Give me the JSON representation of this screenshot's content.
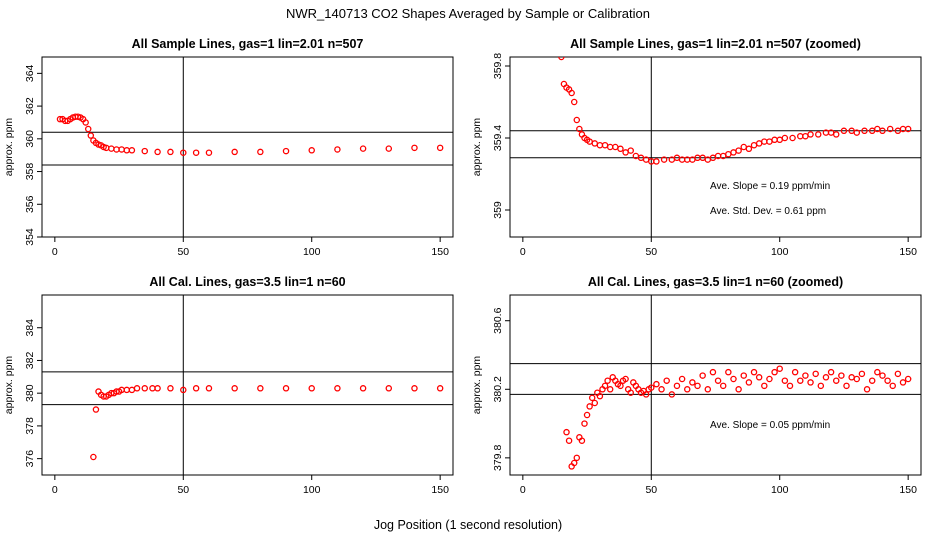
{
  "figure": {
    "title": "NWR_140713  CO2 Shapes Averaged by Sample or Calibration",
    "xlabel": "Jog Position (1 second resolution)"
  },
  "chart_data": [
    {
      "type": "scatter",
      "title": "All Sample Lines, gas=1 lin=2.01 n=507",
      "ylabel": "approx. ppm",
      "xlim": [
        -5,
        155
      ],
      "ylim": [
        354,
        365
      ],
      "xticks": [
        0,
        50,
        100,
        150
      ],
      "yticks": [
        354,
        356,
        358,
        360,
        362,
        364
      ],
      "vline": 50,
      "hlines": [
        358.4,
        360.4
      ],
      "color": "#ff0000",
      "annotations": [],
      "series": [
        {
          "x": [
            2,
            3,
            4,
            5,
            6,
            7,
            8,
            9,
            10,
            11,
            12,
            13,
            14,
            15,
            16,
            17,
            18,
            19,
            20,
            22,
            24,
            26,
            28,
            30,
            35,
            40,
            45,
            50,
            55,
            60,
            70,
            80,
            90,
            100,
            110,
            120,
            130,
            140,
            150
          ],
          "y": [
            361.2,
            361.2,
            361.1,
            361.1,
            361.2,
            361.3,
            361.35,
            361.35,
            361.3,
            361.2,
            361.0,
            360.6,
            360.2,
            359.9,
            359.75,
            359.65,
            359.6,
            359.5,
            359.45,
            359.4,
            359.35,
            359.35,
            359.3,
            359.3,
            359.25,
            359.2,
            359.2,
            359.15,
            359.15,
            359.15,
            359.2,
            359.2,
            359.25,
            359.3,
            359.35,
            359.4,
            359.4,
            359.45,
            359.45
          ]
        }
      ]
    },
    {
      "type": "scatter",
      "title": "All Sample Lines, gas=1 lin=2.01 n=507 (zoomed)",
      "ylabel": "approx. ppm",
      "xlim": [
        -5,
        155
      ],
      "ylim": [
        358.85,
        359.85
      ],
      "xticks": [
        0,
        50,
        100,
        150
      ],
      "yticks": [
        359.0,
        359.4,
        359.8
      ],
      "vline": 50,
      "hlines": [
        359.29,
        359.44
      ],
      "color": "#ff0000",
      "annotations": [
        "Ave. Slope =  0.19  ppm/min",
        "Ave. Std. Dev. =  0.61  ppm"
      ],
      "series": [
        {
          "x": [
            15,
            16,
            17,
            18,
            19,
            20,
            21,
            22,
            23,
            24,
            25,
            26,
            28,
            30,
            32,
            34,
            36,
            38,
            40,
            42,
            44,
            46,
            48,
            50,
            52,
            55,
            58,
            60,
            62,
            64,
            66,
            68,
            70,
            72,
            74,
            76,
            78,
            80,
            82,
            84,
            86,
            88,
            90,
            92,
            94,
            96,
            98,
            100,
            102,
            105,
            108,
            110,
            112,
            115,
            118,
            120,
            122,
            125,
            128,
            130,
            133,
            136,
            138,
            140,
            143,
            146,
            148,
            150
          ],
          "y": [
            359.85,
            359.7,
            359.68,
            359.67,
            359.65,
            359.6,
            359.5,
            359.45,
            359.42,
            359.4,
            359.39,
            359.38,
            359.37,
            359.36,
            359.36,
            359.35,
            359.35,
            359.34,
            359.32,
            359.33,
            359.3,
            359.29,
            359.28,
            359.27,
            359.27,
            359.28,
            359.28,
            359.29,
            359.28,
            359.28,
            359.28,
            359.29,
            359.29,
            359.28,
            359.29,
            359.3,
            359.3,
            359.31,
            359.32,
            359.33,
            359.35,
            359.34,
            359.36,
            359.37,
            359.38,
            359.38,
            359.39,
            359.39,
            359.4,
            359.4,
            359.41,
            359.41,
            359.42,
            359.42,
            359.43,
            359.43,
            359.42,
            359.44,
            359.44,
            359.43,
            359.44,
            359.44,
            359.45,
            359.44,
            359.45,
            359.44,
            359.45,
            359.45
          ]
        }
      ]
    },
    {
      "type": "scatter",
      "title": "All Cal. Lines, gas=3.5 lin=1 n=60",
      "ylabel": "approx. ppm",
      "xlim": [
        -5,
        155
      ],
      "ylim": [
        375,
        386
      ],
      "xticks": [
        0,
        50,
        100,
        150
      ],
      "yticks": [
        376,
        378,
        380,
        382,
        384
      ],
      "ytick_labels": [
        "376",
        "378",
        "380",
        "382",
        "384"
      ],
      "vline": 50,
      "hlines": [
        379.3,
        381.3
      ],
      "color": "#ff0000",
      "annotations": [],
      "series": [
        {
          "x": [
            15,
            16,
            17,
            18,
            19,
            20,
            21,
            22,
            23,
            24,
            25,
            26,
            28,
            30,
            32,
            35,
            38,
            40,
            45,
            50,
            55,
            60,
            70,
            80,
            90,
            100,
            110,
            120,
            130,
            140,
            150
          ],
          "y": [
            376.1,
            379.0,
            380.1,
            379.9,
            379.8,
            379.8,
            379.9,
            380.0,
            380.0,
            380.1,
            380.1,
            380.2,
            380.2,
            380.2,
            380.3,
            380.3,
            380.3,
            380.3,
            380.3,
            380.2,
            380.3,
            380.3,
            380.3,
            380.3,
            380.3,
            380.3,
            380.3,
            380.3,
            380.3,
            380.3,
            380.3
          ]
        }
      ]
    },
    {
      "type": "scatter",
      "title": "All Cal. Lines, gas=3.5 lin=1 n=60 (zoomed)",
      "ylabel": "approx. ppm",
      "xlim": [
        -5,
        155
      ],
      "ylim": [
        379.7,
        380.75
      ],
      "xticks": [
        0,
        50,
        100,
        150
      ],
      "yticks": [
        379.8,
        380.2,
        380.6
      ],
      "ytick_labels": [
        "379.8",
        "380.2",
        "380.6"
      ],
      "vline": 50,
      "hlines": [
        380.17,
        380.35
      ],
      "color": "#ff0000",
      "annotations": [
        "Ave. Slope =  0.05  ppm/min"
      ],
      "series": [
        {
          "x": [
            17,
            18,
            19,
            20,
            21,
            22,
            23,
            24,
            25,
            26,
            27,
            28,
            29,
            30,
            31,
            32,
            33,
            34,
            35,
            36,
            37,
            38,
            39,
            40,
            41,
            42,
            43,
            44,
            45,
            46,
            47,
            48,
            49,
            50,
            52,
            54,
            56,
            58,
            60,
            62,
            64,
            66,
            68,
            70,
            72,
            74,
            76,
            78,
            80,
            82,
            84,
            86,
            88,
            90,
            92,
            94,
            96,
            98,
            100,
            102,
            104,
            106,
            108,
            110,
            112,
            114,
            116,
            118,
            120,
            122,
            124,
            126,
            128,
            130,
            132,
            134,
            136,
            138,
            140,
            142,
            144,
            146,
            148,
            150
          ],
          "y": [
            379.95,
            379.9,
            379.75,
            379.77,
            379.8,
            379.92,
            379.9,
            380.0,
            380.05,
            380.1,
            380.15,
            380.12,
            380.18,
            380.16,
            380.2,
            380.22,
            380.25,
            380.2,
            380.27,
            380.25,
            380.23,
            380.22,
            380.25,
            380.26,
            380.2,
            380.18,
            380.24,
            380.22,
            380.2,
            380.18,
            380.19,
            380.17,
            380.2,
            380.21,
            380.23,
            380.2,
            380.25,
            380.17,
            380.22,
            380.26,
            380.2,
            380.24,
            380.22,
            380.28,
            380.2,
            380.3,
            380.25,
            380.22,
            380.3,
            380.26,
            380.2,
            380.28,
            380.24,
            380.3,
            380.27,
            380.22,
            380.26,
            380.3,
            380.32,
            380.25,
            380.22,
            380.3,
            380.25,
            380.28,
            380.24,
            380.29,
            380.22,
            380.27,
            380.3,
            380.25,
            380.28,
            380.22,
            380.27,
            380.26,
            380.29,
            380.2,
            380.25,
            380.3,
            380.28,
            380.25,
            380.22,
            380.29,
            380.24,
            380.26
          ]
        }
      ]
    }
  ]
}
